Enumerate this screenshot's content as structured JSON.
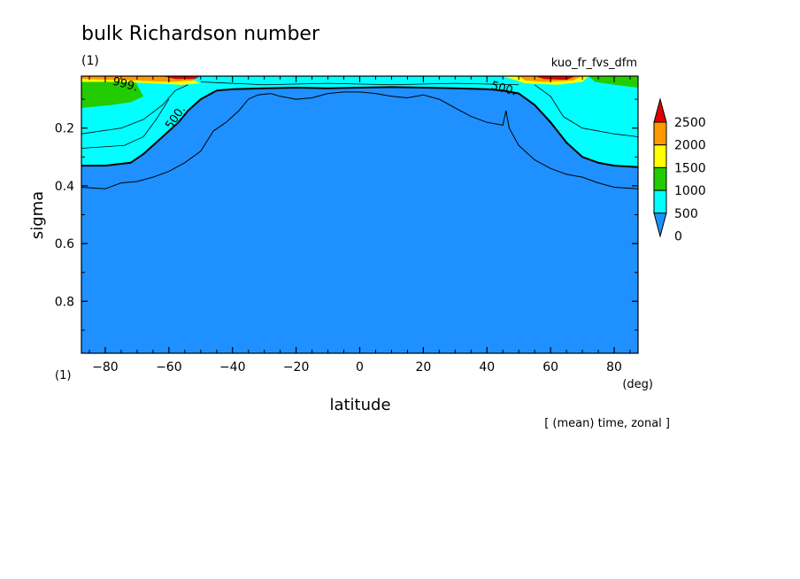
{
  "chart_data": {
    "type": "contour",
    "title": "bulk Richardson number",
    "subtitle_left": "(1)",
    "subtitle_right": "kuo_fr_fvs_dfm",
    "xlabel": "latitude",
    "x_unit": "(deg)",
    "ylabel": "sigma",
    "y_unit": "(1)",
    "xlim": [
      -87.5,
      87.5
    ],
    "ylim": [
      0.02,
      0.98
    ],
    "y_inverted": true,
    "x_ticks": [
      -80,
      -60,
      -40,
      -20,
      0,
      20,
      40,
      60,
      80
    ],
    "x_tick_labels": [
      "−80",
      "−60",
      "−40",
      "−20",
      "0",
      "20",
      "40",
      "60",
      "80"
    ],
    "y_ticks": [
      0.2,
      0.4,
      0.6,
      0.8
    ],
    "y_tick_labels": [
      "0.2",
      "0.4",
      "0.6",
      "0.8"
    ],
    "contour_labels": [
      "999.",
      "500.",
      "500."
    ],
    "note": "[ (mean) time, zonal ]",
    "colorbar": {
      "levels": [
        "2500",
        "2000",
        "1500",
        "1000",
        "500",
        "0"
      ],
      "colors": [
        "#e00000",
        "#ff9900",
        "#ffff00",
        "#22cc00",
        "#00ffff",
        "#1e90ff"
      ],
      "extend": "both"
    },
    "contours": {
      "c500": {
        "lat": [
          -87.5,
          -80,
          -72,
          -68,
          -62,
          -57,
          -54,
          -50,
          -45,
          -40,
          -30,
          -20,
          -10,
          0,
          10,
          20,
          30,
          40,
          45,
          50,
          55,
          60,
          65,
          70,
          75,
          80,
          87.5
        ],
        "sigma": [
          0.33,
          0.33,
          0.32,
          0.29,
          0.23,
          0.18,
          0.14,
          0.1,
          0.07,
          0.065,
          0.062,
          0.06,
          0.062,
          0.06,
          0.058,
          0.06,
          0.062,
          0.065,
          0.07,
          0.08,
          0.12,
          0.18,
          0.25,
          0.3,
          0.32,
          0.33,
          0.335
        ]
      },
      "c250": {
        "lat": [
          -87.5,
          -80,
          -75,
          -70,
          -65,
          -60,
          -55,
          -50,
          -46,
          -42,
          -38,
          -35,
          -32,
          -28,
          -25,
          -20,
          -15,
          -10,
          -5,
          0,
          5,
          10,
          15,
          20,
          25,
          30,
          35,
          40,
          45,
          46,
          47,
          50,
          55,
          60,
          65,
          70,
          75,
          80,
          87.5
        ],
        "sigma": [
          0.405,
          0.41,
          0.39,
          0.385,
          0.37,
          0.35,
          0.32,
          0.28,
          0.21,
          0.18,
          0.14,
          0.1,
          0.085,
          0.08,
          0.09,
          0.1,
          0.095,
          0.08,
          0.075,
          0.075,
          0.08,
          0.09,
          0.095,
          0.085,
          0.1,
          0.13,
          0.16,
          0.18,
          0.19,
          0.14,
          0.2,
          0.26,
          0.31,
          0.34,
          0.36,
          0.37,
          0.39,
          0.405,
          0.41
        ]
      }
    }
  }
}
